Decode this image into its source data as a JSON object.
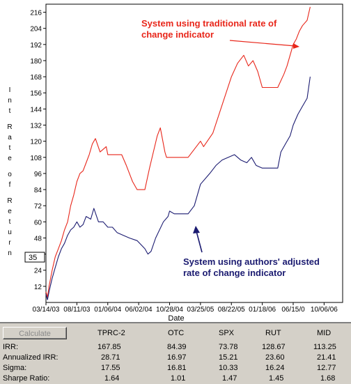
{
  "chart_data": {
    "type": "line",
    "xlabel": "Date",
    "ylabel": "Int Rate of Return",
    "ylim": [
      0,
      222
    ],
    "yticks": [
      12,
      24,
      36,
      48,
      60,
      72,
      84,
      96,
      108,
      120,
      132,
      144,
      156,
      168,
      180,
      192,
      204,
      216
    ],
    "xtick_labels": [
      "03/14/03",
      "08/11/03",
      "01/06/04",
      "06/02/04",
      "10/28/04",
      "03/25/05",
      "08/22/05",
      "01/18/06",
      "06/15/0",
      "10/06/06",
      "06"
    ],
    "cursor_value": "35",
    "series": [
      {
        "name": "System using traditional rate of change indicator",
        "color": "#e8261a",
        "points": [
          [
            0,
            8
          ],
          [
            0.05,
            4
          ],
          [
            0.1,
            12
          ],
          [
            0.2,
            24
          ],
          [
            0.3,
            34
          ],
          [
            0.4,
            40
          ],
          [
            0.5,
            46
          ],
          [
            0.6,
            54
          ],
          [
            0.7,
            60
          ],
          [
            0.8,
            72
          ],
          [
            0.9,
            80
          ],
          [
            1.0,
            90
          ],
          [
            1.1,
            96
          ],
          [
            1.2,
            98
          ],
          [
            1.3,
            104
          ],
          [
            1.4,
            110
          ],
          [
            1.5,
            118
          ],
          [
            1.6,
            122
          ],
          [
            1.75,
            112
          ],
          [
            1.95,
            116
          ],
          [
            2.0,
            110
          ],
          [
            2.45,
            110
          ],
          [
            2.6,
            102
          ],
          [
            2.8,
            90
          ],
          [
            2.95,
            84
          ],
          [
            3.2,
            84
          ],
          [
            3.35,
            100
          ],
          [
            3.6,
            124
          ],
          [
            3.7,
            130
          ],
          [
            3.85,
            112
          ],
          [
            3.9,
            108
          ],
          [
            4.6,
            108
          ],
          [
            4.8,
            114
          ],
          [
            5.0,
            120
          ],
          [
            5.1,
            116
          ],
          [
            5.4,
            126
          ],
          [
            5.6,
            140
          ],
          [
            5.8,
            154
          ],
          [
            6.0,
            168
          ],
          [
            6.2,
            178
          ],
          [
            6.4,
            184
          ],
          [
            6.55,
            176
          ],
          [
            6.7,
            180
          ],
          [
            6.85,
            172
          ],
          [
            7.0,
            160
          ],
          [
            7.5,
            160
          ],
          [
            7.7,
            170
          ],
          [
            7.8,
            176
          ],
          [
            8.0,
            192
          ],
          [
            8.1,
            196
          ],
          [
            8.2,
            202
          ],
          [
            8.3,
            206
          ],
          [
            8.45,
            210
          ],
          [
            8.55,
            220
          ]
        ]
      },
      {
        "name": "System using authors' adjusted rate of change indicator",
        "color": "#1a1a70",
        "points": [
          [
            0,
            6
          ],
          [
            0.05,
            2
          ],
          [
            0.1,
            8
          ],
          [
            0.2,
            18
          ],
          [
            0.3,
            26
          ],
          [
            0.4,
            34
          ],
          [
            0.5,
            40
          ],
          [
            0.6,
            44
          ],
          [
            0.7,
            50
          ],
          [
            0.8,
            54
          ],
          [
            0.9,
            56
          ],
          [
            1.0,
            60
          ],
          [
            1.1,
            56
          ],
          [
            1.2,
            58
          ],
          [
            1.3,
            64
          ],
          [
            1.45,
            62
          ],
          [
            1.55,
            70
          ],
          [
            1.7,
            60
          ],
          [
            1.85,
            60
          ],
          [
            2.0,
            56
          ],
          [
            2.15,
            56
          ],
          [
            2.3,
            52
          ],
          [
            2.5,
            50
          ],
          [
            2.7,
            48
          ],
          [
            2.95,
            46
          ],
          [
            3.2,
            40
          ],
          [
            3.3,
            36
          ],
          [
            3.4,
            38
          ],
          [
            3.55,
            48
          ],
          [
            3.8,
            60
          ],
          [
            3.95,
            64
          ],
          [
            4.0,
            68
          ],
          [
            4.15,
            66
          ],
          [
            4.6,
            66
          ],
          [
            4.8,
            72
          ],
          [
            5.0,
            88
          ],
          [
            5.3,
            96
          ],
          [
            5.5,
            102
          ],
          [
            5.7,
            106
          ],
          [
            5.9,
            108
          ],
          [
            6.1,
            110
          ],
          [
            6.3,
            106
          ],
          [
            6.5,
            104
          ],
          [
            6.65,
            108
          ],
          [
            6.8,
            102
          ],
          [
            7.0,
            100
          ],
          [
            7.5,
            100
          ],
          [
            7.6,
            112
          ],
          [
            7.75,
            118
          ],
          [
            7.9,
            124
          ],
          [
            8.0,
            132
          ],
          [
            8.15,
            140
          ],
          [
            8.3,
            146
          ],
          [
            8.45,
            152
          ],
          [
            8.55,
            168
          ]
        ]
      }
    ],
    "annotations": [
      {
        "text_lines": [
          "System using traditional rate of",
          "change indicator"
        ],
        "color": "#e8261a"
      },
      {
        "text_lines": [
          "System using authors' adjusted",
          "rate of change indicator"
        ],
        "color": "#1a1a70"
      }
    ]
  },
  "stats": {
    "calculate_label": "Calculate",
    "columns": [
      "TPRC-2",
      "OTC",
      "SPX",
      "RUT",
      "MID"
    ],
    "rows": [
      {
        "label": "IRR:",
        "values": [
          "167.85",
          "84.39",
          "73.78",
          "128.67",
          "113.25"
        ]
      },
      {
        "label": "Annualized IRR:",
        "values": [
          "28.71",
          "16.97",
          "15.21",
          "23.60",
          "21.41"
        ]
      },
      {
        "label": "Sigma:",
        "values": [
          "17.55",
          "16.81",
          "10.33",
          "16.24",
          "12.77"
        ]
      },
      {
        "label": "Sharpe Ratio:",
        "values": [
          "1.64",
          "1.01",
          "1.47",
          "1.45",
          "1.68"
        ]
      }
    ]
  }
}
